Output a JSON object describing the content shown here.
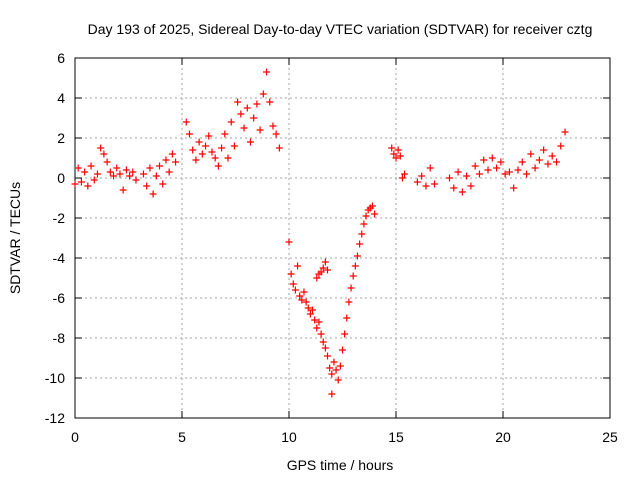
{
  "chart_data": {
    "type": "scatter",
    "title": "Day 193 of 2025, Sidereal Day-to-day VTEC variation (SDTVAR) for receiver cztg",
    "xlabel": "GPS time / hours",
    "ylabel": "SDTVAR / TECUs",
    "xlim": [
      0,
      25
    ],
    "ylim": [
      -12,
      6
    ],
    "xticks": [
      0,
      5,
      10,
      15,
      20,
      25
    ],
    "yticks": [
      -12,
      -10,
      -8,
      -6,
      -4,
      -2,
      0,
      2,
      4,
      6
    ],
    "grid": true,
    "marker": "+",
    "color": "#ff0000",
    "series": [
      {
        "name": "SDTVAR",
        "x": [
          0.0,
          0.15,
          0.3,
          0.45,
          0.6,
          0.75,
          0.9,
          1.05,
          1.2,
          1.35,
          1.5,
          1.65,
          1.8,
          1.95,
          2.1,
          2.25,
          2.4,
          2.55,
          2.7,
          2.85,
          3.2,
          3.35,
          3.5,
          3.65,
          3.8,
          3.95,
          4.1,
          4.25,
          4.4,
          4.55,
          4.7,
          5.2,
          5.35,
          5.5,
          5.65,
          5.8,
          5.95,
          6.1,
          6.25,
          6.4,
          6.55,
          6.7,
          6.85,
          7.0,
          7.15,
          7.3,
          7.45,
          7.6,
          7.75,
          7.9,
          8.05,
          8.2,
          8.35,
          8.5,
          8.65,
          8.8,
          8.95,
          9.1,
          9.25,
          9.4,
          9.55,
          10.0,
          10.1,
          10.2,
          10.3,
          10.4,
          10.5,
          10.6,
          10.7,
          10.8,
          10.9,
          11.0,
          11.1,
          11.2,
          11.3,
          11.4,
          11.5,
          11.6,
          11.7,
          11.8,
          11.9,
          12.0,
          12.1,
          12.2,
          12.3,
          12.4,
          12.5,
          12.6,
          12.7,
          12.8,
          12.9,
          13.0,
          13.1,
          13.2,
          13.3,
          13.4,
          13.5,
          13.6,
          13.7,
          13.8,
          13.9,
          14.0,
          11.3,
          11.4,
          11.5,
          11.6,
          11.7,
          11.8,
          12.0,
          14.8,
          14.9,
          15.0,
          15.1,
          15.2,
          15.3,
          15.4,
          16.0,
          16.2,
          16.4,
          16.6,
          16.8,
          17.5,
          17.7,
          17.9,
          18.1,
          18.3,
          18.5,
          18.7,
          18.9,
          19.1,
          19.3,
          19.5,
          19.7,
          19.9,
          20.1,
          20.3,
          20.5,
          20.7,
          20.9,
          21.1,
          21.3,
          21.5,
          21.7,
          21.9,
          22.1,
          22.3,
          22.5,
          22.7,
          22.9
        ],
        "y": [
          -0.3,
          0.5,
          -0.2,
          0.3,
          -0.4,
          0.6,
          -0.1,
          0.2,
          1.5,
          1.2,
          0.8,
          0.3,
          0.1,
          0.5,
          0.2,
          -0.6,
          0.4,
          0.1,
          0.3,
          -0.1,
          0.2,
          -0.4,
          0.5,
          -0.8,
          0.1,
          0.6,
          -0.3,
          0.9,
          0.3,
          1.2,
          0.8,
          2.8,
          2.2,
          1.4,
          0.9,
          1.8,
          1.2,
          1.6,
          2.1,
          1.3,
          1.0,
          0.6,
          1.5,
          2.2,
          1.0,
          2.8,
          1.6,
          3.8,
          3.2,
          2.5,
          3.5,
          1.8,
          3.0,
          3.7,
          2.4,
          4.2,
          5.3,
          3.8,
          2.6,
          2.2,
          1.5,
          -3.2,
          -4.8,
          -5.3,
          -5.6,
          -4.4,
          -5.9,
          -6.1,
          -5.7,
          -6.2,
          -6.5,
          -6.8,
          -6.6,
          -7.1,
          -7.5,
          -7.2,
          -7.8,
          -8.2,
          -8.5,
          -8.9,
          -9.5,
          -9.8,
          -9.2,
          -9.6,
          -10.1,
          -9.4,
          -8.6,
          -7.8,
          -7.0,
          -6.2,
          -5.5,
          -4.9,
          -4.4,
          -3.9,
          -3.3,
          -2.8,
          -2.3,
          -1.9,
          -1.6,
          -1.5,
          -1.4,
          -1.8,
          -5.0,
          -4.8,
          -4.7,
          -4.5,
          -4.2,
          -4.6,
          -10.8,
          1.5,
          1.2,
          1.0,
          1.4,
          1.1,
          0.0,
          0.2,
          -0.2,
          0.1,
          -0.4,
          0.5,
          -0.3,
          0.0,
          -0.5,
          0.3,
          -0.7,
          0.1,
          -0.4,
          0.6,
          0.2,
          0.9,
          0.4,
          1.0,
          0.5,
          0.8,
          0.2,
          0.3,
          -0.5,
          0.4,
          0.8,
          0.2,
          1.2,
          0.5,
          0.9,
          1.4,
          0.7,
          1.1,
          0.8,
          1.6,
          2.3
        ]
      }
    ]
  }
}
